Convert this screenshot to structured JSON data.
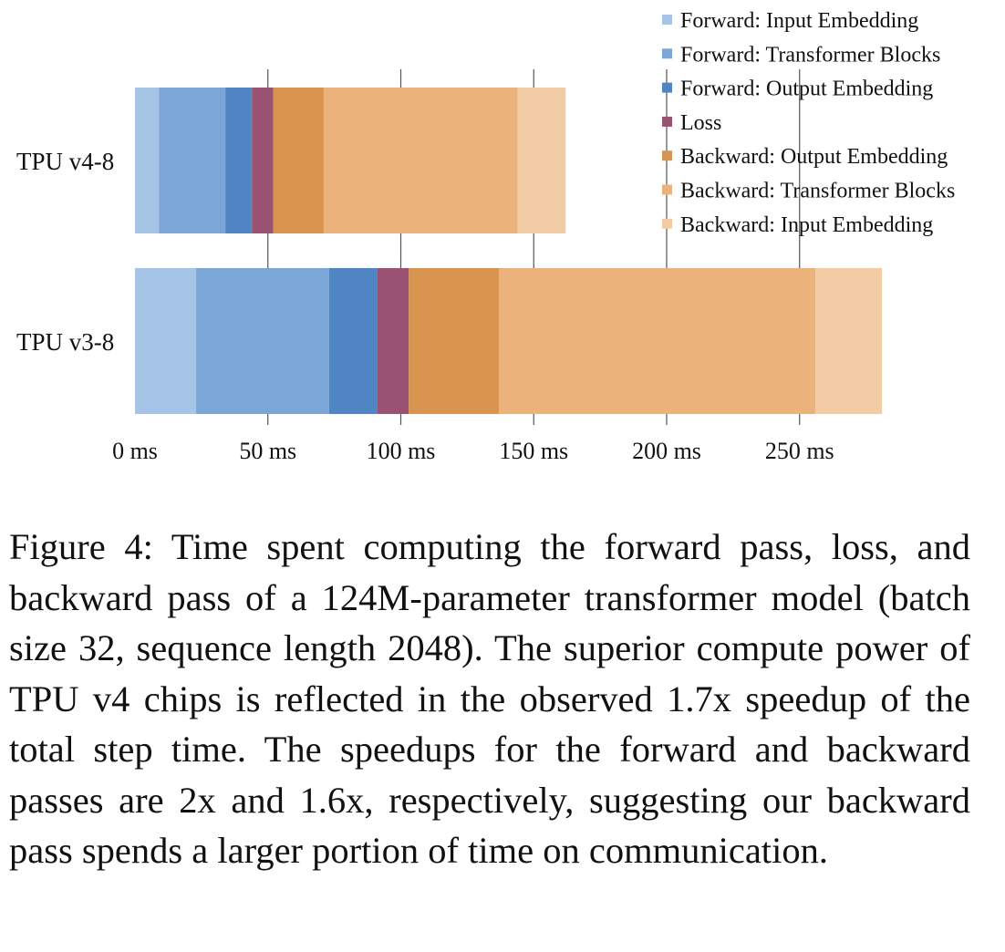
{
  "chart_data": {
    "type": "bar",
    "orientation": "horizontal",
    "stacked": true,
    "categories": [
      "TPU v4-8",
      "TPU v3-8"
    ],
    "series": [
      {
        "name": "Forward: Input Embedding",
        "color": "#a6c4e6",
        "values": [
          9,
          23
        ]
      },
      {
        "name": "Forward: Transformer Blocks",
        "color": "#7aa6d8",
        "values": [
          25,
          50
        ]
      },
      {
        "name": "Forward: Output Embedding",
        "color": "#4e85c2",
        "values": [
          10,
          18
        ]
      },
      {
        "name": "Loss",
        "color": "#9a5273",
        "values": [
          8,
          12
        ]
      },
      {
        "name": "Backward: Output Embedding",
        "color": "#d99550",
        "values": [
          19,
          34
        ]
      },
      {
        "name": "Backward: Transformer Blocks",
        "color": "#ebb37b",
        "values": [
          73,
          119
        ]
      },
      {
        "name": "Backward: Input Embedding",
        "color": "#f2cca4",
        "values": [
          18,
          25
        ]
      }
    ],
    "x_ticks": [
      {
        "value": 0,
        "label": "0 ms"
      },
      {
        "value": 50,
        "label": "50 ms"
      },
      {
        "value": 100,
        "label": "100 ms"
      },
      {
        "value": 150,
        "label": "150 ms"
      },
      {
        "value": 200,
        "label": "200 ms"
      },
      {
        "value": 250,
        "label": "250 ms"
      }
    ],
    "xlim": [
      0,
      280
    ],
    "title": "",
    "xlabel": "",
    "ylabel": "",
    "grid": "vertical lines at ticks",
    "legend_position": "top-right"
  },
  "caption": "Figure 4: Time spent computing the forward pass, loss, and backward pass of a 124M-parameter transformer model (batch size 32, sequence length 2048).  The su­perior compute power of TPU v4 chips is reflected in the observed 1.7x speedup of the total step time.  The speedups for the forward and backward passes are 2x and 1.6x, respectively, suggesting our backward pass spends a larger portion of time on communication."
}
